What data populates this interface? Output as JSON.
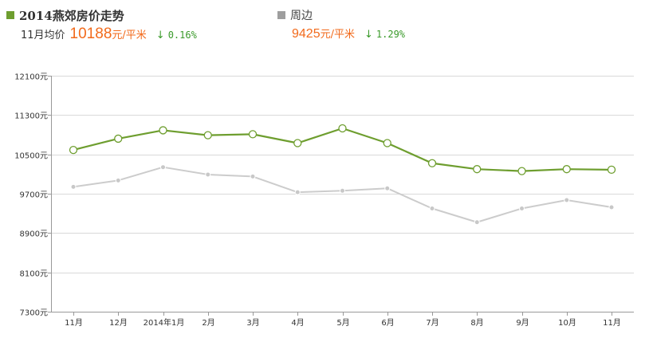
{
  "header": {
    "primary": {
      "title": "2014燕郊房价走势",
      "color": "#6e9e2f",
      "stat_label": "11月均价",
      "stat_value": "10188",
      "stat_unit": "元/平米",
      "arrow": "↓",
      "change": "0.16%"
    },
    "secondary": {
      "title": "周边",
      "color": "#9e9e9e",
      "stat_value": "9425",
      "stat_unit": "元/平米",
      "arrow": "↓",
      "change": "1.29%"
    }
  },
  "chart_data": {
    "type": "line",
    "categories": [
      "11月",
      "12月",
      "2014年1月",
      "2月",
      "3月",
      "4月",
      "5月",
      "6月",
      "7月",
      "8月",
      "9月",
      "10月",
      "11月"
    ],
    "ylim": [
      7300,
      12100
    ],
    "yticks": [
      12100,
      11300,
      10500,
      9700,
      8900,
      8100,
      7300
    ],
    "ytick_labels": [
      "12100元",
      "11300元",
      "10500元",
      "9700元",
      "8900元",
      "8100元",
      "7300元"
    ],
    "grid": true,
    "series": [
      {
        "name": "2014燕郊房价走势",
        "color": "#6e9e2f",
        "values": [
          10590,
          10820,
          10990,
          10890,
          10910,
          10730,
          11030,
          10730,
          10320,
          10200,
          10160,
          10200,
          10188
        ]
      },
      {
        "name": "周边",
        "color": "#cccccc",
        "values": [
          9840,
          9970,
          10240,
          10090,
          10050,
          9730,
          9760,
          9810,
          9400,
          9120,
          9400,
          9570,
          9425
        ]
      }
    ]
  }
}
